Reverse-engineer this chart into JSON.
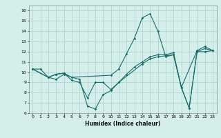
{
  "xlabel": "Humidex (Indice chaleur)",
  "xlim": [
    -0.5,
    23.5
  ],
  "ylim": [
    6,
    16.5
  ],
  "xticks": [
    0,
    1,
    2,
    3,
    4,
    5,
    6,
    7,
    8,
    9,
    10,
    11,
    12,
    13,
    14,
    15,
    16,
    17,
    18,
    19,
    20,
    21,
    22,
    23
  ],
  "yticks": [
    6,
    7,
    8,
    9,
    10,
    11,
    12,
    13,
    14,
    15,
    16
  ],
  "bg_color": "#d4eeea",
  "grid_color": "#aed6d0",
  "line_color": "#1a6b6b",
  "series": [
    {
      "x": [
        0,
        1,
        2,
        3,
        4,
        5,
        10,
        11,
        12,
        13,
        14,
        15,
        16,
        17,
        18,
        19,
        21,
        22,
        23
      ],
      "y": [
        10.3,
        10.3,
        9.5,
        9.3,
        9.8,
        9.5,
        9.7,
        10.3,
        11.8,
        13.3,
        15.3,
        15.7,
        14.0,
        11.5,
        11.7,
        8.5,
        12.1,
        12.5,
        12.1
      ]
    },
    {
      "x": [
        0,
        2,
        3,
        4,
        5,
        6,
        7,
        8,
        9,
        10,
        11,
        12,
        13,
        14,
        15,
        16,
        17,
        18,
        19,
        20,
        21,
        22,
        23
      ],
      "y": [
        10.3,
        9.5,
        9.8,
        9.9,
        9.2,
        9.0,
        7.5,
        9.0,
        9.0,
        8.3,
        9.0,
        9.8,
        10.5,
        11.0,
        11.5,
        11.7,
        11.7,
        11.9,
        8.5,
        6.5,
        12.0,
        12.0,
        12.1
      ]
    },
    {
      "x": [
        0,
        2,
        3,
        4,
        5,
        6,
        7,
        8,
        9,
        10,
        11,
        14,
        15,
        16,
        18,
        19,
        20,
        21,
        22,
        23
      ],
      "y": [
        10.3,
        9.5,
        9.8,
        9.9,
        9.5,
        9.3,
        6.7,
        6.4,
        7.8,
        8.2,
        9.0,
        10.8,
        11.3,
        11.5,
        11.7,
        8.5,
        6.5,
        12.0,
        12.3,
        12.1
      ]
    }
  ]
}
